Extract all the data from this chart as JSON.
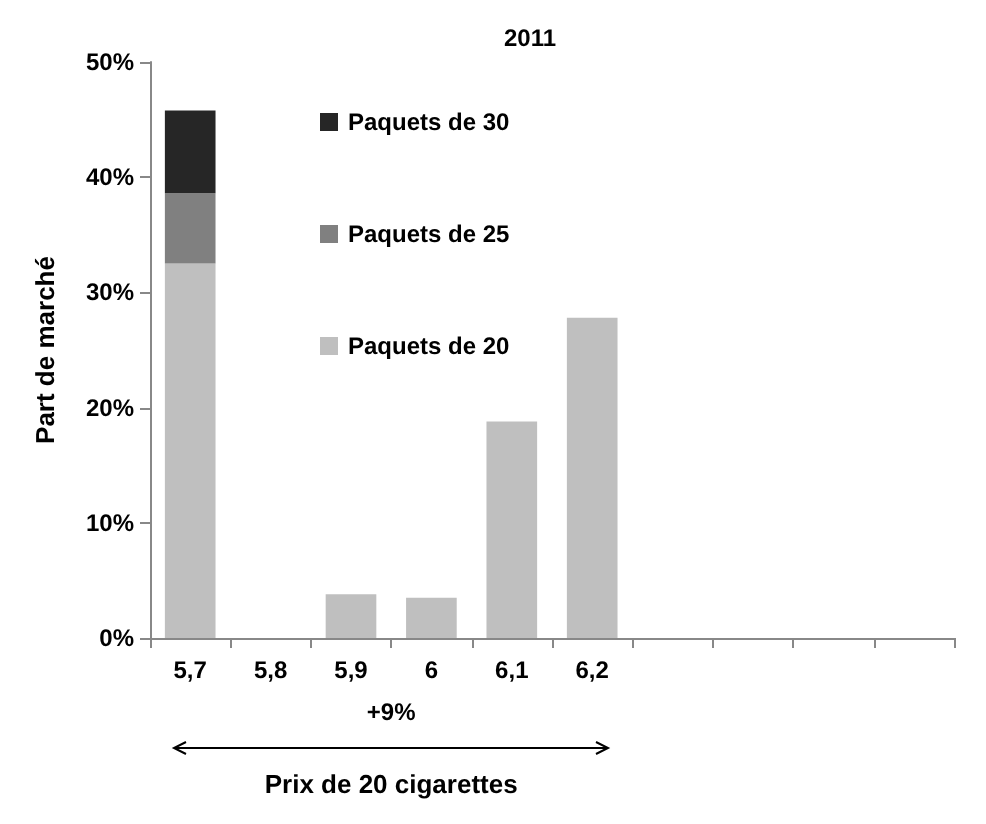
{
  "chart_data": {
    "type": "bar",
    "title": "2011",
    "ylabel": "Part de marché",
    "xlabel": "Prix de 20 cigarettes",
    "annotations": [
      "+9%"
    ],
    "categories": [
      "5,7",
      "5,8",
      "5,9",
      "6",
      "6,1",
      "6,2",
      null,
      null,
      null,
      null
    ],
    "stacked": true,
    "legend": "top",
    "series": [
      {
        "name": "Paquets de 20",
        "color": "#bfbfbf",
        "values": [
          32.5,
          null,
          3.8,
          3.5,
          18.8,
          27.8,
          null,
          null,
          null,
          null
        ]
      },
      {
        "name": "Paquets de 25",
        "color": "#808080",
        "values": [
          6.1,
          null,
          null,
          null,
          null,
          null,
          null,
          null,
          null,
          null
        ]
      },
      {
        "name": "Paquets de 30",
        "color": "#262626",
        "values": [
          7.2,
          null,
          null,
          null,
          null,
          null,
          null,
          null,
          null,
          null
        ]
      }
    ],
    "ylim": [
      0,
      50
    ],
    "yticks": [
      {
        "value": 0,
        "label": "0%"
      },
      {
        "value": 10,
        "label": "10%"
      },
      {
        "value": 20,
        "label": "20%"
      },
      {
        "value": 30,
        "label": "30%"
      },
      {
        "value": 40,
        "label": "40%"
      },
      {
        "value": 50,
        "label": "50%"
      }
    ]
  }
}
